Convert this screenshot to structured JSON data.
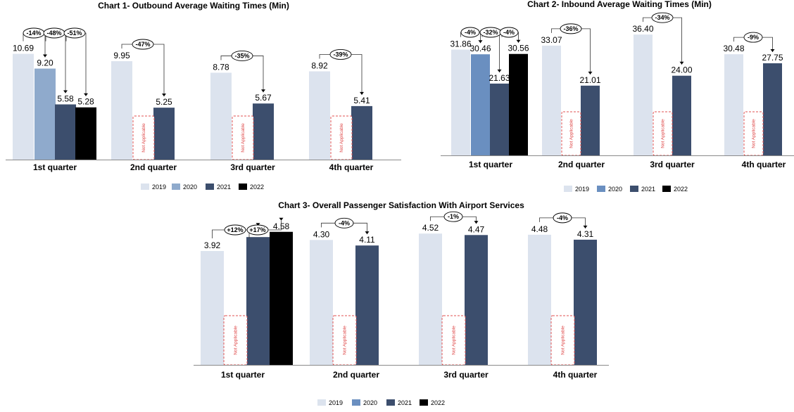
{
  "na_label": "Not Applicable",
  "colors": {
    "2019": "#dce3ee",
    "2020": "#8faacc",
    "2020_chart2": "#6a8fc0",
    "2021": "#3c4e6d",
    "2022": "#000000",
    "na_border": "#e05050"
  },
  "chart_data": [
    {
      "type": "bar",
      "title": "Chart 1- Outbound Average Waiting Times (Min)",
      "categories": [
        "1st quarter",
        "2nd quarter",
        "3rd quarter",
        "4th quarter"
      ],
      "series": [
        {
          "name": "2019",
          "values": [
            10.69,
            9.95,
            8.78,
            8.92
          ]
        },
        {
          "name": "2020",
          "values": [
            9.2,
            null,
            null,
            null
          ]
        },
        {
          "name": "2021",
          "values": [
            5.58,
            5.25,
            5.67,
            5.41
          ]
        },
        {
          "name": "2022",
          "values": [
            5.28,
            null,
            null,
            null
          ]
        }
      ],
      "value_labels": [
        [
          "10.69",
          "9.95",
          "8.78",
          "8.92"
        ],
        [
          "9.20",
          null,
          null,
          null
        ],
        [
          "5.58",
          "5.25",
          "5.67",
          "5.41"
        ],
        [
          "5.28",
          null,
          null,
          null
        ]
      ],
      "not_applicable": [
        [
          1,
          1
        ],
        [
          2,
          1
        ],
        [
          3,
          1
        ]
      ],
      "changes": [
        {
          "category": 0,
          "series": 1,
          "label": "-14%"
        },
        {
          "category": 0,
          "series": 2,
          "label": "-48%"
        },
        {
          "category": 0,
          "series": 3,
          "label": "-51%"
        },
        {
          "category": 1,
          "series": 2,
          "label": "-47%"
        },
        {
          "category": 2,
          "series": 2,
          "label": "-35%"
        },
        {
          "category": 3,
          "series": 2,
          "label": "-39%"
        }
      ],
      "ylim": [
        0,
        14
      ],
      "legend": [
        "2019",
        "2020",
        "2021",
        "2022"
      ],
      "legend_position": "bottom",
      "grid": false
    },
    {
      "type": "bar",
      "title": "Chart 2- Inbound Average Waiting Times (Min)",
      "categories": [
        "1st quarter",
        "2nd quarter",
        "3rd quarter",
        "4th quarter"
      ],
      "series": [
        {
          "name": "2019",
          "values": [
            31.86,
            33.07,
            36.4,
            30.48
          ]
        },
        {
          "name": "2020",
          "values": [
            30.46,
            null,
            null,
            null
          ]
        },
        {
          "name": "2021",
          "values": [
            21.63,
            21.01,
            24.0,
            27.75
          ]
        },
        {
          "name": "2022",
          "values": [
            30.56,
            null,
            null,
            null
          ]
        }
      ],
      "value_labels": [
        [
          "31.86",
          "33.07",
          "36.40",
          "30.48"
        ],
        [
          "30.46",
          null,
          null,
          null
        ],
        [
          "21.63",
          "21.01",
          "24.00",
          "27.75"
        ],
        [
          "30.56",
          null,
          null,
          null
        ]
      ],
      "not_applicable": [
        [
          1,
          1
        ],
        [
          2,
          1
        ],
        [
          3,
          1
        ]
      ],
      "changes": [
        {
          "category": 0,
          "series": 1,
          "label": "-4%"
        },
        {
          "category": 0,
          "series": 2,
          "label": "-32%"
        },
        {
          "category": 0,
          "series": 3,
          "label": "-4%"
        },
        {
          "category": 1,
          "series": 2,
          "label": "-36%"
        },
        {
          "category": 2,
          "series": 2,
          "label": "-34%"
        },
        {
          "category": 3,
          "series": 2,
          "label": "-9%"
        }
      ],
      "ylim": [
        0,
        43
      ],
      "legend": [
        "2019",
        "2020",
        "2021",
        "2022"
      ],
      "legend_position": "bottom",
      "grid": false
    },
    {
      "type": "bar",
      "title": "Chart 3- Overall Passenger Satisfaction With Airport Services",
      "categories": [
        "1st quarter",
        "2nd quarter",
        "3rd quarter",
        "4th quarter"
      ],
      "series": [
        {
          "name": "2019",
          "values": [
            3.92,
            4.3,
            4.52,
            4.48
          ]
        },
        {
          "name": "2020",
          "values": [
            null,
            null,
            null,
            null
          ]
        },
        {
          "name": "2021",
          "values": [
            4.4,
            4.11,
            4.47,
            4.31
          ]
        },
        {
          "name": "2022",
          "values": [
            4.58,
            null,
            null,
            null
          ]
        }
      ],
      "value_labels": [
        [
          "3.92",
          "4.30",
          "4.52",
          "4.48"
        ],
        [
          null,
          null,
          null,
          null
        ],
        [
          "4.40",
          "4.11",
          "4.47",
          "4.31"
        ],
        [
          "4.58",
          null,
          null,
          null
        ]
      ],
      "not_applicable": [
        [
          0,
          1
        ],
        [
          1,
          1
        ],
        [
          2,
          1
        ],
        [
          3,
          1
        ]
      ],
      "changes": [
        {
          "category": 0,
          "series": 2,
          "label": "+12%"
        },
        {
          "category": 0,
          "series": 3,
          "label": "+17%"
        },
        {
          "category": 1,
          "series": 2,
          "label": "-4%"
        },
        {
          "category": 2,
          "series": 2,
          "label": "-1%"
        },
        {
          "category": 3,
          "series": 2,
          "label": "-4%"
        }
      ],
      "ylim": [
        0,
        5.3
      ],
      "legend": [
        "2019",
        "2020",
        "2021",
        "2022"
      ],
      "legend_position": "bottom",
      "grid": false
    }
  ]
}
